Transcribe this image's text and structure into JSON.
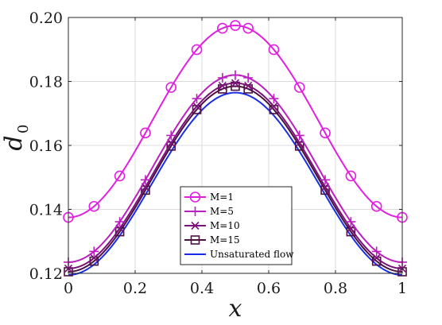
{
  "chart_data": {
    "type": "line",
    "xlabel": "x",
    "ylabel_main": "d",
    "ylabel_sub": "0",
    "xlim": [
      0,
      1
    ],
    "ylim": [
      0.12,
      0.2
    ],
    "x_ticks": [
      0,
      0.2,
      0.4,
      0.6,
      0.8,
      1
    ],
    "y_ticks": [
      0.12,
      0.14,
      0.16,
      0.18,
      0.2
    ],
    "x_tick_labels": [
      "0",
      "0.2",
      "0.4",
      "0.6",
      "0.8",
      "1"
    ],
    "y_tick_labels": [
      "0.12",
      "0.14",
      "0.16",
      "0.18",
      "0.20"
    ],
    "grid": true,
    "legend_position": "bottom-center",
    "marker_x": [
      0,
      0.0769,
      0.1538,
      0.2308,
      0.3077,
      0.3846,
      0.4615,
      0.5,
      0.5385,
      0.6154,
      0.6923,
      0.7692,
      0.8462,
      0.9231,
      1
    ],
    "series": [
      {
        "name": "M=1",
        "color": "#e21ee0",
        "marker": "circle",
        "min": 0.1375,
        "max": 0.1975
      },
      {
        "name": "M=5",
        "color": "#bb1fbe",
        "marker": "plus",
        "min": 0.1235,
        "max": 0.182
      },
      {
        "name": "M=10",
        "color": "#7a1279",
        "marker": "x",
        "min": 0.1215,
        "max": 0.1795
      },
      {
        "name": "M=15",
        "color": "#4a1240",
        "marker": "square",
        "min": 0.1205,
        "max": 0.1785
      },
      {
        "name": "Unsaturated flow",
        "color": "#1a2ee8",
        "marker": "none",
        "min": 0.1195,
        "max": 0.1765
      }
    ]
  }
}
